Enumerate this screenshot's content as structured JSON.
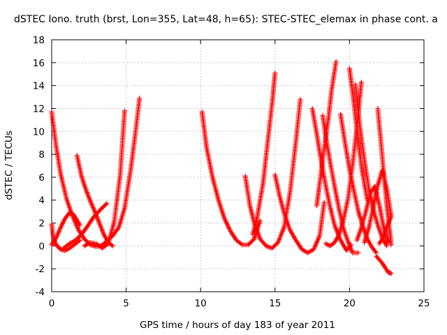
{
  "chart_data": {
    "type": "scatter",
    "title": "dSTEC Iono. truth (brst, Lon=355, Lat=48, h=65): STEC-STEC_elemax in phase cont. a",
    "xlabel": "GPS time / hours of day 183 of year 2011",
    "ylabel": "dSTEC  / TECUs",
    "xlim": [
      0,
      25
    ],
    "ylim": [
      -4,
      18
    ],
    "x_ticks": [
      0,
      5,
      10,
      15,
      20,
      25
    ],
    "y_ticks": [
      -4,
      -2,
      0,
      2,
      4,
      6,
      8,
      10,
      12,
      14,
      16,
      18
    ],
    "grid": true,
    "marker": "plus",
    "color": "#ff0000",
    "series": [
      {
        "x": [
          0.0,
          0.3,
          0.6,
          1.0,
          1.4,
          1.8,
          2.2,
          2.6,
          3.0,
          3.4
        ],
        "y": [
          11.7,
          8.7,
          6.3,
          4.1,
          2.6,
          1.4,
          0.6,
          0.1,
          -0.05,
          0.0
        ]
      },
      {
        "x": [
          0.0,
          0.1,
          0.3,
          0.6,
          0.9,
          1.2,
          1.6,
          1.9
        ],
        "y": [
          1.9,
          0.8,
          0.1,
          -0.3,
          -0.4,
          -0.2,
          0.2,
          0.5
        ]
      },
      {
        "x": [
          0.0,
          0.3,
          0.6,
          0.9,
          1.2,
          1.5,
          1.9
        ],
        "y": [
          0.1,
          0.7,
          1.6,
          2.4,
          2.9,
          2.7,
          1.8
        ]
      },
      {
        "x": [
          0.8,
          1.2,
          1.6,
          2.0,
          2.4,
          2.8,
          3.3,
          3.7
        ],
        "y": [
          -0.2,
          0.2,
          0.5,
          1.0,
          1.7,
          2.5,
          3.2,
          3.7
        ]
      },
      {
        "x": [
          1.7,
          2.0,
          2.3,
          2.6,
          2.9,
          3.2,
          3.5,
          3.8,
          4.1
        ],
        "y": [
          7.9,
          6.1,
          4.9,
          3.9,
          3.0,
          2.0,
          1.0,
          0.3,
          0.0
        ]
      },
      {
        "x": [
          2.2,
          2.6,
          3.0,
          3.4,
          3.8,
          4.2,
          4.6,
          4.9
        ],
        "y": [
          0.0,
          0.3,
          0.2,
          -0.2,
          0.2,
          2.1,
          6.2,
          11.8
        ]
      },
      {
        "x": [
          3.3,
          3.7,
          4.1,
          4.5,
          4.9,
          5.3,
          5.6,
          5.9
        ],
        "y": [
          0.0,
          0.4,
          0.9,
          1.6,
          3.3,
          6.6,
          9.6,
          12.9
        ]
      },
      {
        "x": [
          10.1,
          10.4,
          10.8,
          11.2,
          11.6,
          12.0,
          12.4,
          12.8,
          13.2,
          13.6,
          14.0
        ],
        "y": [
          11.7,
          8.6,
          6.0,
          4.0,
          2.4,
          1.3,
          0.5,
          0.1,
          0.1,
          0.6,
          2.2
        ]
      },
      {
        "x": [
          13.0,
          13.3,
          13.6,
          14.0,
          14.4,
          14.8,
          15.2,
          15.6,
          16.0,
          16.4,
          16.7
        ],
        "y": [
          6.1,
          3.6,
          2.0,
          0.6,
          0.0,
          -0.2,
          0.3,
          1.6,
          4.6,
          9.1,
          12.8
        ]
      },
      {
        "x": [
          13.5,
          13.8,
          14.2,
          14.5,
          14.8,
          15.0
        ],
        "y": [
          1.0,
          2.5,
          5.5,
          9.0,
          12.4,
          15.1
        ]
      },
      {
        "x": [
          15.0,
          15.3,
          15.6,
          16.0,
          16.4,
          16.8,
          17.2,
          17.6,
          18.0,
          18.3
        ],
        "y": [
          6.2,
          4.4,
          2.9,
          1.4,
          0.5,
          -0.3,
          -0.6,
          -0.3,
          0.9,
          3.8
        ]
      },
      {
        "x": [
          17.5,
          17.8,
          18.1,
          18.4,
          18.7,
          19.0,
          19.4,
          19.8,
          20.1
        ],
        "y": [
          12.0,
          9.8,
          7.4,
          5.3,
          3.4,
          1.8,
          0.5,
          -0.4,
          0.1
        ]
      },
      {
        "x": [
          17.8,
          18.0,
          18.3,
          18.6,
          18.8,
          19.1
        ],
        "y": [
          3.5,
          5.5,
          8.5,
          11.3,
          13.6,
          16.1
        ]
      },
      {
        "x": [
          18.2,
          18.4,
          18.7,
          19.0,
          19.3,
          19.6,
          19.9,
          20.2,
          20.6
        ],
        "y": [
          11.4,
          9.6,
          7.3,
          5.2,
          3.2,
          1.5,
          0.4,
          -0.6,
          -0.6
        ]
      },
      {
        "x": [
          18.4,
          18.7,
          19.0,
          19.3,
          19.6,
          19.9,
          20.2,
          20.5,
          20.8
        ],
        "y": [
          0.2,
          0.0,
          0.3,
          1.0,
          2.3,
          4.1,
          7.0,
          10.4,
          14.3
        ]
      },
      {
        "x": [
          19.4,
          19.7,
          20.0,
          20.3,
          20.6,
          20.9,
          21.2,
          21.5,
          21.8
        ],
        "y": [
          11.5,
          9.0,
          6.7,
          4.8,
          3.0,
          1.7,
          0.6,
          -0.1,
          -0.6
        ]
      },
      {
        "x": [
          20.0,
          20.2,
          20.4,
          20.6,
          20.8,
          21.0,
          21.2
        ],
        "y": [
          15.5,
          13.5,
          11.3,
          9.0,
          7.0,
          5.4,
          4.0
        ]
      },
      {
        "x": [
          20.4,
          20.7,
          21.0,
          21.3,
          21.6,
          21.9,
          22.2,
          22.5
        ],
        "y": [
          14.1,
          10.4,
          7.5,
          5.0,
          3.2,
          1.8,
          0.7,
          0.0
        ]
      },
      {
        "x": [
          20.5,
          20.8,
          21.1,
          21.4,
          21.7,
          22.0,
          22.3,
          22.6
        ],
        "y": [
          0.5,
          1.6,
          3.0,
          4.6,
          5.2,
          3.6,
          1.6,
          0.3
        ]
      },
      {
        "x": [
          21.9,
          22.1,
          22.3,
          22.5,
          22.7,
          22.8
        ],
        "y": [
          12.0,
          9.2,
          6.4,
          3.6,
          1.3,
          0.1
        ]
      },
      {
        "x": [
          21.0,
          21.3,
          21.6,
          21.9,
          22.2,
          22.5,
          22.8
        ],
        "y": [
          0.3,
          1.6,
          3.4,
          5.3,
          6.6,
          5.0,
          2.6
        ]
      },
      {
        "x": [
          21.8,
          22.0,
          22.2,
          22.4,
          22.6,
          22.8
        ],
        "y": [
          -0.9,
          -1.2,
          -1.5,
          -1.9,
          -2.3,
          -2.4
        ]
      },
      {
        "x": [
          22.0,
          22.2,
          22.4,
          22.6,
          22.8
        ],
        "y": [
          0.2,
          0.6,
          1.2,
          1.9,
          2.6
        ]
      }
    ]
  }
}
